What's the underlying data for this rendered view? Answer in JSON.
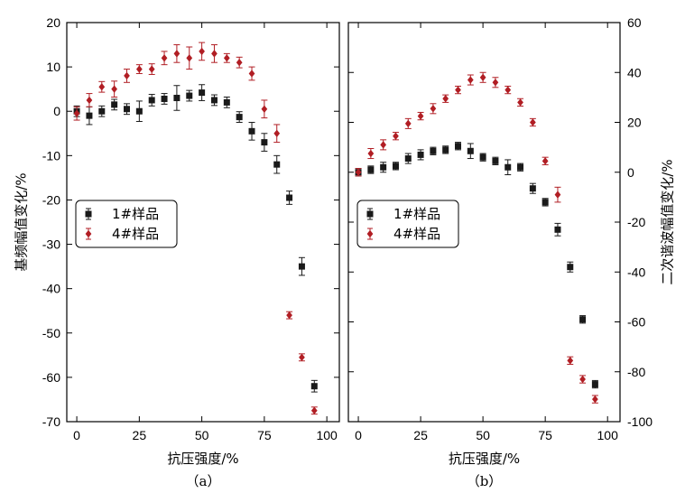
{
  "chart_data": [
    {
      "type": "scatter",
      "panel_label": "（a）",
      "xlabel": "抗压强度/%",
      "ylabel": "基频幅值变化/%",
      "xlim": [
        -4,
        105
      ],
      "ylim": [
        -70,
        20
      ],
      "xticks": [
        0,
        25,
        50,
        75,
        100
      ],
      "yticks": [
        20,
        10,
        0,
        -10,
        -20,
        -30,
        -40,
        -50,
        -60,
        -70
      ],
      "y_axis_side": "left",
      "legend_position": "center-left",
      "series": [
        {
          "name": "1#样品",
          "marker": "square",
          "color": "#1a1a1a",
          "x": [
            0,
            5,
            10,
            15,
            20,
            25,
            30,
            35,
            40,
            45,
            50,
            55,
            60,
            65,
            70,
            75,
            80,
            85,
            90,
            95
          ],
          "y": [
            0,
            -1,
            0,
            1.5,
            0.5,
            0,
            2.5,
            2.8,
            3,
            3.5,
            4.2,
            2.5,
            2,
            -1.3,
            -4.5,
            -7,
            -12,
            -19.5,
            -35,
            -62
          ],
          "err": [
            1.2,
            2,
            1.2,
            1.2,
            1.2,
            2.3,
            1.3,
            1.2,
            2.8,
            1.2,
            1.8,
            1.2,
            1.2,
            1.2,
            2,
            2,
            2,
            1.5,
            2,
            1.3
          ]
        },
        {
          "name": "4#样品",
          "marker": "diamond",
          "color": "#b11e24",
          "x": [
            0,
            5,
            10,
            15,
            20,
            25,
            30,
            35,
            40,
            45,
            50,
            55,
            60,
            65,
            70,
            75,
            80,
            85,
            90,
            95
          ],
          "y": [
            -0.5,
            2.5,
            5.5,
            5,
            8,
            9.5,
            9.5,
            12,
            13,
            12,
            13.5,
            13,
            12,
            11,
            8.5,
            0.5,
            -5,
            -46,
            -55.5,
            -67.5
          ],
          "err": [
            1.5,
            1.5,
            1.2,
            1.8,
            1.5,
            1,
            1.2,
            1.5,
            2,
            2.5,
            2,
            2,
            1,
            1.2,
            1.5,
            2,
            2,
            0.8,
            0.8,
            0.8
          ]
        }
      ]
    },
    {
      "type": "scatter",
      "panel_label": "（b）",
      "xlabel": "抗压强度/%",
      "ylabel": "二次谐波幅值变化/%",
      "xlim": [
        -4,
        105
      ],
      "ylim": [
        -100,
        60
      ],
      "xticks": [
        0,
        25,
        50,
        75,
        100
      ],
      "yticks": [
        60,
        40,
        20,
        0,
        -20,
        -40,
        -60,
        -80,
        -100
      ],
      "y_axis_side": "right",
      "legend_position": "center-left",
      "series": [
        {
          "name": "1#样品",
          "marker": "square",
          "color": "#1a1a1a",
          "x": [
            0,
            5,
            10,
            15,
            20,
            25,
            30,
            35,
            40,
            45,
            50,
            55,
            60,
            65,
            70,
            75,
            80,
            85,
            90,
            95
          ],
          "y": [
            0,
            1,
            2,
            2.5,
            5.5,
            7,
            8.5,
            9,
            10.5,
            8.5,
            6,
            4.5,
            2,
            2,
            -6.5,
            -12,
            -23,
            -38,
            -59,
            -85
          ],
          "err": [
            1.5,
            1.5,
            2,
            1.5,
            2,
            2,
            1.5,
            1.5,
            1.5,
            3,
            1.5,
            1.5,
            3,
            1.5,
            2,
            1.5,
            2.5,
            2,
            1.5,
            1.5
          ]
        },
        {
          "name": "4#样品",
          "marker": "diamond",
          "color": "#b11e24",
          "x": [
            0,
            5,
            10,
            15,
            20,
            25,
            30,
            35,
            40,
            45,
            50,
            55,
            60,
            65,
            70,
            75,
            80,
            85,
            90,
            95
          ],
          "y": [
            0,
            7.5,
            11,
            14.5,
            19.5,
            22.5,
            25.5,
            29.5,
            33,
            37,
            38,
            36,
            33,
            28,
            20,
            4.5,
            -9,
            -75.5,
            -83,
            -91
          ],
          "err": [
            1.5,
            2,
            2,
            1.5,
            2,
            1.5,
            2,
            1.5,
            1.5,
            2,
            2,
            2,
            1.5,
            1.5,
            1.5,
            1.5,
            3,
            1.5,
            1.5,
            1.5
          ]
        }
      ]
    }
  ]
}
